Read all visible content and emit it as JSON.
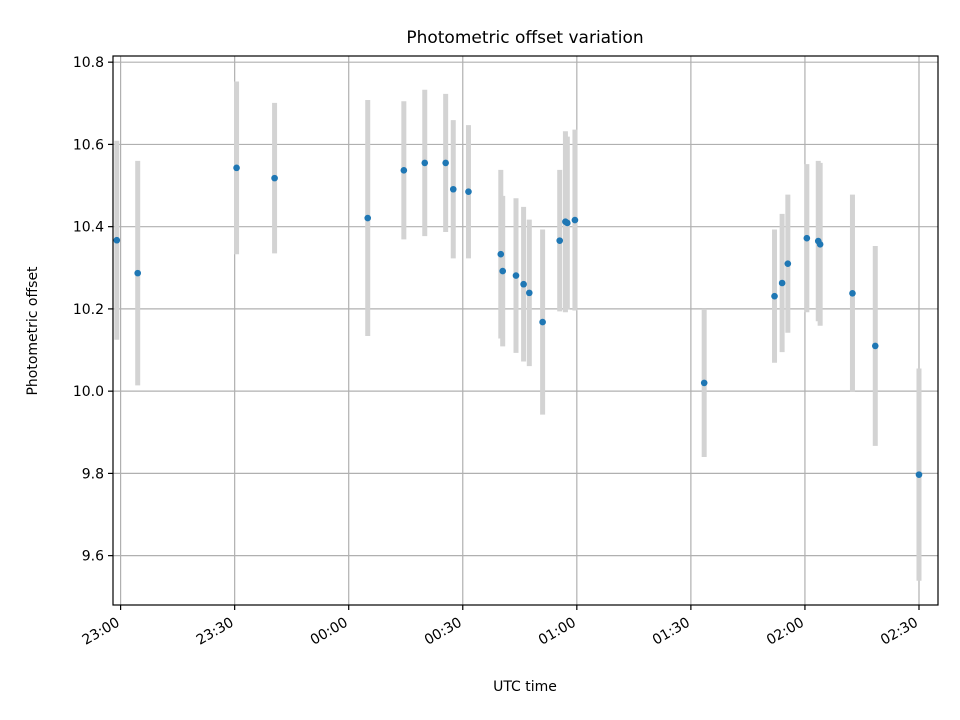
{
  "chart_data": {
    "type": "scatter",
    "title": "Photometric offset variation",
    "xlabel": "UTC time",
    "ylabel": "Photometric offset",
    "x_axis_kind": "time",
    "xlim": [
      "22:58",
      "02:35"
    ],
    "ylim": [
      9.48,
      10.815
    ],
    "grid": true,
    "legend": null,
    "x_ticks": [
      "23:00",
      "23:30",
      "00:00",
      "00:30",
      "01:00",
      "01:30",
      "02:00",
      "02:30"
    ],
    "y_ticks": [
      "9.6",
      "9.8",
      "10.0",
      "10.2",
      "10.4",
      "10.6",
      "10.8"
    ],
    "colors": {
      "marker": "#1f77b4",
      "errorbar": "#d3d3d3",
      "grid": "#b0b0b0"
    },
    "points": [
      {
        "x": "22:59:00",
        "y": 10.367,
        "err": 0.242
      },
      {
        "x": "23:04:30",
        "y": 10.287,
        "err": 0.273
      },
      {
        "x": "23:30:30",
        "y": 10.543,
        "err": 0.21
      },
      {
        "x": "23:40:30",
        "y": 10.518,
        "err": 0.183
      },
      {
        "x": "00:05:00",
        "y": 10.421,
        "err": 0.287
      },
      {
        "x": "00:14:30",
        "y": 10.537,
        "err": 0.168
      },
      {
        "x": "00:20:00",
        "y": 10.555,
        "err": 0.178
      },
      {
        "x": "00:25:30",
        "y": 10.555,
        "err": 0.168
      },
      {
        "x": "00:27:30",
        "y": 10.491,
        "err": 0.168
      },
      {
        "x": "00:31:30",
        "y": 10.485,
        "err": 0.162
      },
      {
        "x": "00:40:00",
        "y": 10.333,
        "err": 0.205
      },
      {
        "x": "00:40:30",
        "y": 10.292,
        "err": 0.183
      },
      {
        "x": "00:44:00",
        "y": 10.281,
        "err": 0.188
      },
      {
        "x": "00:46:00",
        "y": 10.26,
        "err": 0.188
      },
      {
        "x": "00:47:30",
        "y": 10.239,
        "err": 0.178
      },
      {
        "x": "00:51:00",
        "y": 10.168,
        "err": 0.225
      },
      {
        "x": "00:55:30",
        "y": 10.366,
        "err": 0.172
      },
      {
        "x": "00:57:00",
        "y": 10.412,
        "err": 0.22
      },
      {
        "x": "00:57:30",
        "y": 10.409,
        "err": 0.21
      },
      {
        "x": "00:59:30",
        "y": 10.416,
        "err": 0.22
      },
      {
        "x": "01:33:30",
        "y": 10.02,
        "err": 0.18
      },
      {
        "x": "01:52:00",
        "y": 10.231,
        "err": 0.162
      },
      {
        "x": "01:54:00",
        "y": 10.263,
        "err": 0.168
      },
      {
        "x": "01:55:30",
        "y": 10.31,
        "err": 0.168
      },
      {
        "x": "02:00:30",
        "y": 10.372,
        "err": 0.18
      },
      {
        "x": "02:03:30",
        "y": 10.365,
        "err": 0.195
      },
      {
        "x": "02:04:00",
        "y": 10.357,
        "err": 0.198
      },
      {
        "x": "02:12:30",
        "y": 10.238,
        "err": 0.24
      },
      {
        "x": "02:18:30",
        "y": 10.11,
        "err": 0.243
      },
      {
        "x": "02:30:00",
        "y": 9.797,
        "err": 0.258
      }
    ]
  }
}
